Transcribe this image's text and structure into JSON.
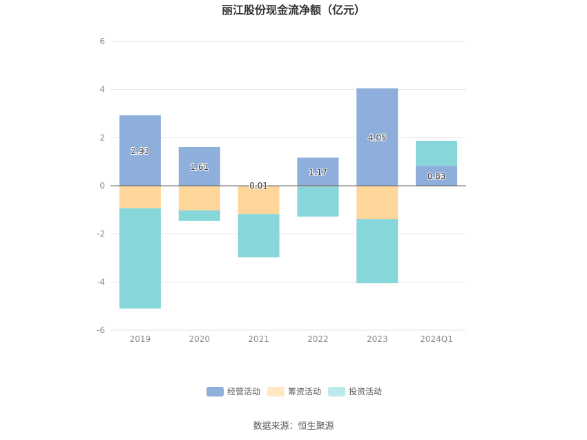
{
  "title": "丽江股份现金流净额（亿元）",
  "source": "数据来源：恒生聚源",
  "chart_data": {
    "type": "bar",
    "stacked": true,
    "categories": [
      "2019",
      "2020",
      "2021",
      "2022",
      "2023",
      "2024Q1"
    ],
    "series": [
      {
        "name": "经营活动",
        "color": "#8eaedb",
        "values": [
          2.93,
          1.61,
          0.01,
          1.17,
          4.05,
          0.83
        ],
        "labels": [
          "2.93",
          "1.61",
          "0.01",
          "1.17",
          "4.05",
          "0.83"
        ]
      },
      {
        "name": "筹资活动",
        "color": "#ffd699",
        "values": [
          -0.93,
          -1.02,
          -1.18,
          -0.03,
          -1.38,
          -0.02
        ]
      },
      {
        "name": "投资活动",
        "color": "#87d6da",
        "values": [
          -4.17,
          -0.44,
          -1.79,
          -1.25,
          -2.67,
          1.04
        ]
      }
    ],
    "yaxis": {
      "ticks": [
        "6",
        "4",
        "2",
        "0",
        "-2",
        "-4",
        "-6"
      ],
      "min": -6,
      "max": 6
    },
    "legend_position": "bottom",
    "grid": true
  },
  "legend_colors": [
    "#8eaedb",
    "#ffe8c2",
    "#bde9eb"
  ]
}
